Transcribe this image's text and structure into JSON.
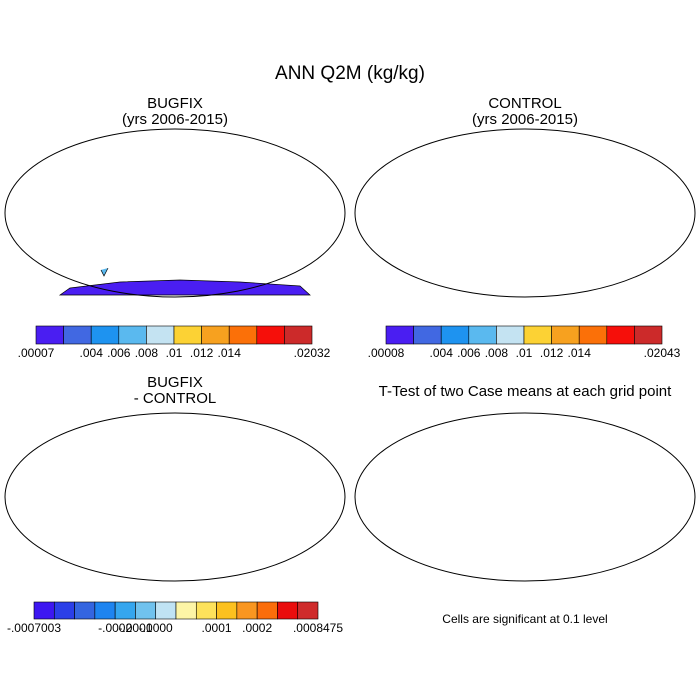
{
  "title": "ANN Q2M (kg/kg)",
  "panels": [
    {
      "id": "bugfix",
      "title_line1": "BUGFIX",
      "title_line2": "(yrs 2006-2015)"
    },
    {
      "id": "control",
      "title_line1": "CONTROL",
      "title_line2": "(yrs 2006-2015)"
    },
    {
      "id": "difference",
      "title_line1": "BUGFIX",
      "title_line2": "- CONTROL"
    },
    {
      "id": "ttest",
      "title_line1": "T-Test of two Case means at each grid point",
      "title_line2": ""
    }
  ],
  "colorbars": [
    {
      "colors": [
        "#4a1ef2",
        "#4168e2",
        "#1e93f0",
        "#5ab9ef",
        "#c4e3f2",
        "#fcd234",
        "#f7a11f",
        "#fb7008",
        "#f60f0a",
        "#cc2a2a"
      ],
      "labels": [
        ".00007",
        ".004",
        ".006",
        ".008",
        ".01",
        ".012",
        ".014",
        ".02032"
      ]
    },
    {
      "colors": [
        "#4a1ef2",
        "#4168e2",
        "#1e93f0",
        "#5ab9ef",
        "#c4e3f2",
        "#fcd234",
        "#f7a11f",
        "#fb7008",
        "#f60f0a",
        "#cc2a2a"
      ],
      "labels": [
        ".00008",
        ".004",
        ".006",
        ".008",
        ".01",
        ".012",
        ".014",
        ".02043"
      ]
    },
    {
      "colors": [
        "#3d17f1",
        "#2b3fe8",
        "#3465e0",
        "#1e84f0",
        "#35a6ef",
        "#70c2ee",
        "#c0e3f4",
        "#fdf5a6",
        "#fde25b",
        "#fcc11f",
        "#f99620",
        "#fb6d0b",
        "#ea0d0d",
        "#cf2b2b"
      ],
      "labels": [
        "-.0007003",
        "-.0002",
        "-.0001",
        "-.0000",
        ".0001",
        ".0002",
        ".0008475"
      ]
    }
  ],
  "significance_note": "Cells are significant at 0.1 level",
  "significance_color": "#e8171b"
}
